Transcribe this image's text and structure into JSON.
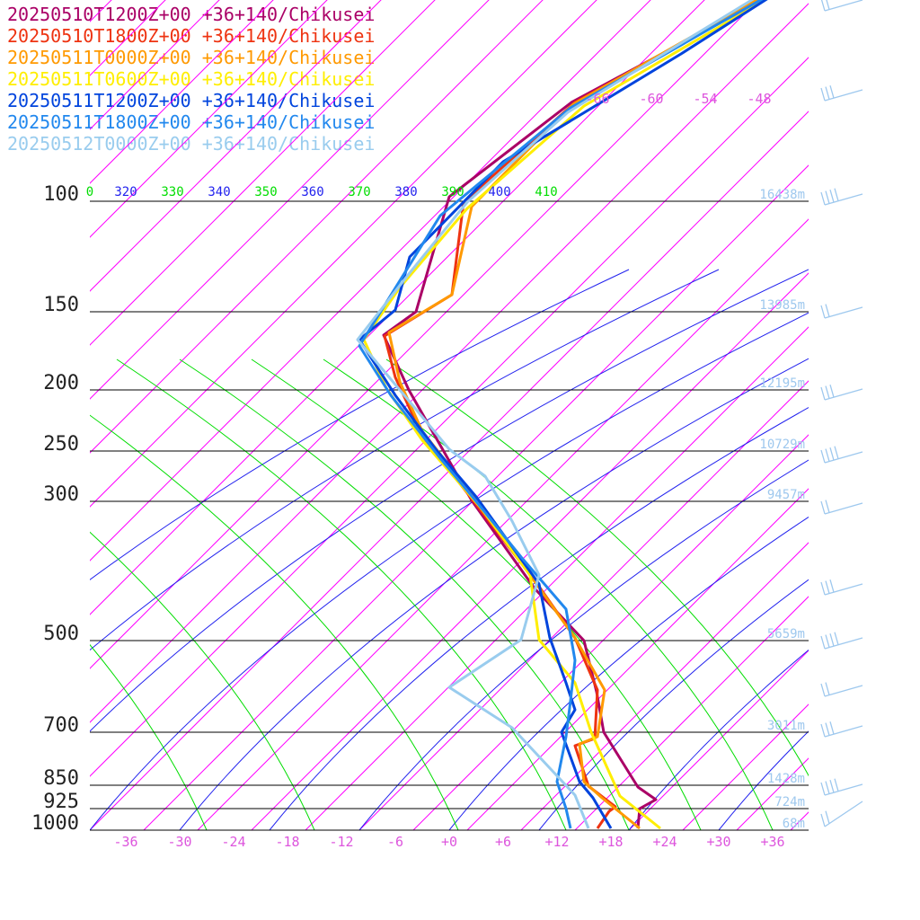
{
  "chart_data": {
    "type": "line",
    "title": "",
    "colors": {
      "isotherm": "#ff00ff",
      "dry_adiabat": "#2222ee",
      "moist_adiabat": "#00dd00",
      "isobar": "#000000",
      "height_label": "#9ec8ee",
      "isotherm_label": "#dd55dd",
      "wind_barb": "#9ec8ee"
    },
    "pressure_levels": [
      "100",
      "150",
      "200",
      "250",
      "300",
      "500",
      "700",
      "850",
      "925",
      "1000"
    ],
    "height_labels": [
      {
        "p": 100,
        "label": "16438m"
      },
      {
        "p": 150,
        "label": "13985m"
      },
      {
        "p": 200,
        "label": "12195m"
      },
      {
        "p": 250,
        "label": "10729m"
      },
      {
        "p": 300,
        "label": "9457m"
      },
      {
        "p": 500,
        "label": "5659m"
      },
      {
        "p": 700,
        "label": "3011m"
      },
      {
        "p": 850,
        "label": "1428m"
      },
      {
        "p": 925,
        "label": "724m"
      },
      {
        "p": 1000,
        "label": "68m"
      }
    ],
    "temperature_ticks": [
      "-36",
      "-30",
      "-24",
      "-18",
      "-12",
      "-6",
      "+0",
      "+6",
      "+12",
      "+18",
      "+24",
      "+30",
      "+36"
    ],
    "upper_isotherm_labels": [
      "-66",
      "-60",
      "-54",
      "-48"
    ],
    "theta_labels": [
      {
        "label": "0",
        "color": "#00dd00"
      },
      {
        "label": "320",
        "color": "#2222ee"
      },
      {
        "label": "330",
        "color": "#00dd00"
      },
      {
        "label": "340",
        "color": "#2222ee"
      },
      {
        "label": "350",
        "color": "#00dd00"
      },
      {
        "label": "360",
        "color": "#2222ee"
      },
      {
        "label": "370",
        "color": "#00dd00"
      },
      {
        "label": "380",
        "color": "#2222ee"
      },
      {
        "label": "390",
        "color": "#00dd00"
      },
      {
        "label": "400",
        "color": "#2222ee"
      },
      {
        "label": "410",
        "color": "#00dd00"
      }
    ],
    "series": [
      {
        "name": "20250510T1200Z+00 +36+140/Chikusei",
        "color": "#aa0066",
        "points": [
          [
            852,
            -2
          ],
          [
            636,
            114
          ],
          [
            500,
            219
          ],
          [
            463,
            347
          ],
          [
            427,
            373
          ],
          [
            455,
            434
          ],
          [
            525,
            557
          ],
          [
            595,
            655
          ],
          [
            650,
            713
          ],
          [
            664,
            770
          ],
          [
            672,
            815
          ],
          [
            710,
            876
          ],
          [
            730,
            890
          ],
          [
            712,
            900
          ],
          [
            710,
            922
          ]
        ]
      },
      {
        "name": "20250510T1800Z+00 +36+140/Chikusei",
        "color": "#ee3311",
        "points": [
          [
            850,
            -2
          ],
          [
            640,
            114
          ],
          [
            516,
            225
          ],
          [
            503,
            328
          ],
          [
            428,
            374
          ],
          [
            440,
            420
          ],
          [
            470,
            485
          ],
          [
            525,
            555
          ],
          [
            598,
            650
          ],
          [
            640,
            710
          ],
          [
            665,
            768
          ],
          [
            662,
            822
          ],
          [
            640,
            830
          ],
          [
            655,
            875
          ],
          [
            685,
            898
          ],
          [
            678,
            903
          ],
          [
            665,
            922
          ]
        ]
      },
      {
        "name": "20250511T0000Z+00 +36+140/Chikusei",
        "color": "#ff9900",
        "points": [
          [
            845,
            -2
          ],
          [
            638,
            116
          ],
          [
            525,
            230
          ],
          [
            503,
            328
          ],
          [
            433,
            370
          ],
          [
            445,
            425
          ],
          [
            470,
            480
          ],
          [
            525,
            550
          ],
          [
            597,
            650
          ],
          [
            640,
            710
          ],
          [
            673,
            768
          ],
          [
            665,
            820
          ],
          [
            645,
            828
          ],
          [
            650,
            870
          ],
          [
            670,
            888
          ],
          [
            712,
            922
          ]
        ]
      },
      {
        "name": "20250511T0600Z+00 +36+140/Chikusei",
        "color": "#ffee00",
        "points": [
          [
            855,
            -2
          ],
          [
            650,
            118
          ],
          [
            520,
            232
          ],
          [
            445,
            320
          ],
          [
            405,
            378
          ],
          [
            430,
            432
          ],
          [
            470,
            490
          ],
          [
            535,
            565
          ],
          [
            590,
            640
          ],
          [
            600,
            712
          ],
          [
            640,
            760
          ],
          [
            658,
            815
          ],
          [
            690,
            886
          ],
          [
            735,
            922
          ]
        ]
      },
      {
        "name": "20250511T1200Z+00 +36+140/Chikusei",
        "color": "#0044dd",
        "points": [
          [
            855,
            -2
          ],
          [
            758,
            60
          ],
          [
            560,
            180
          ],
          [
            456,
            286
          ],
          [
            440,
            345
          ],
          [
            400,
            378
          ],
          [
            440,
            440
          ],
          [
            485,
            500
          ],
          [
            530,
            553
          ],
          [
            600,
            650
          ],
          [
            612,
            710
          ],
          [
            630,
            760
          ],
          [
            640,
            790
          ],
          [
            625,
            815
          ],
          [
            645,
            870
          ],
          [
            660,
            888
          ],
          [
            680,
            922
          ]
        ]
      },
      {
        "name": "20250511T1800Z+00 +36+140/Chikusei",
        "color": "#2288ee",
        "points": [
          [
            850,
            -2
          ],
          [
            635,
            120
          ],
          [
            490,
            240
          ],
          [
            400,
            385
          ],
          [
            435,
            440
          ],
          [
            490,
            510
          ],
          [
            530,
            558
          ],
          [
            580,
            620
          ],
          [
            630,
            678
          ],
          [
            640,
            735
          ],
          [
            635,
            780
          ],
          [
            630,
            820
          ],
          [
            620,
            870
          ],
          [
            630,
            900
          ],
          [
            635,
            922
          ]
        ]
      },
      {
        "name": "20250512T0000Z+00 +36+140/Chikusei",
        "color": "#99ccee",
        "points": [
          [
            840,
            -2
          ],
          [
            632,
            125
          ],
          [
            520,
            225
          ],
          [
            455,
            305
          ],
          [
            398,
            378
          ],
          [
            450,
            440
          ],
          [
            500,
            500
          ],
          [
            540,
            530
          ],
          [
            570,
            580
          ],
          [
            600,
            640
          ],
          [
            580,
            712
          ],
          [
            500,
            765
          ],
          [
            570,
            810
          ],
          [
            640,
            885
          ],
          [
            655,
            922
          ]
        ]
      }
    ],
    "wind_barbs": [
      {
        "y": 12
      },
      {
        "y": 112
      },
      {
        "y": 228
      },
      {
        "y": 354
      },
      {
        "y": 445
      },
      {
        "y": 515
      },
      {
        "y": 572
      },
      {
        "y": 662
      },
      {
        "y": 722
      },
      {
        "y": 775
      },
      {
        "y": 820
      },
      {
        "y": 885
      },
      {
        "y": 920
      }
    ]
  }
}
